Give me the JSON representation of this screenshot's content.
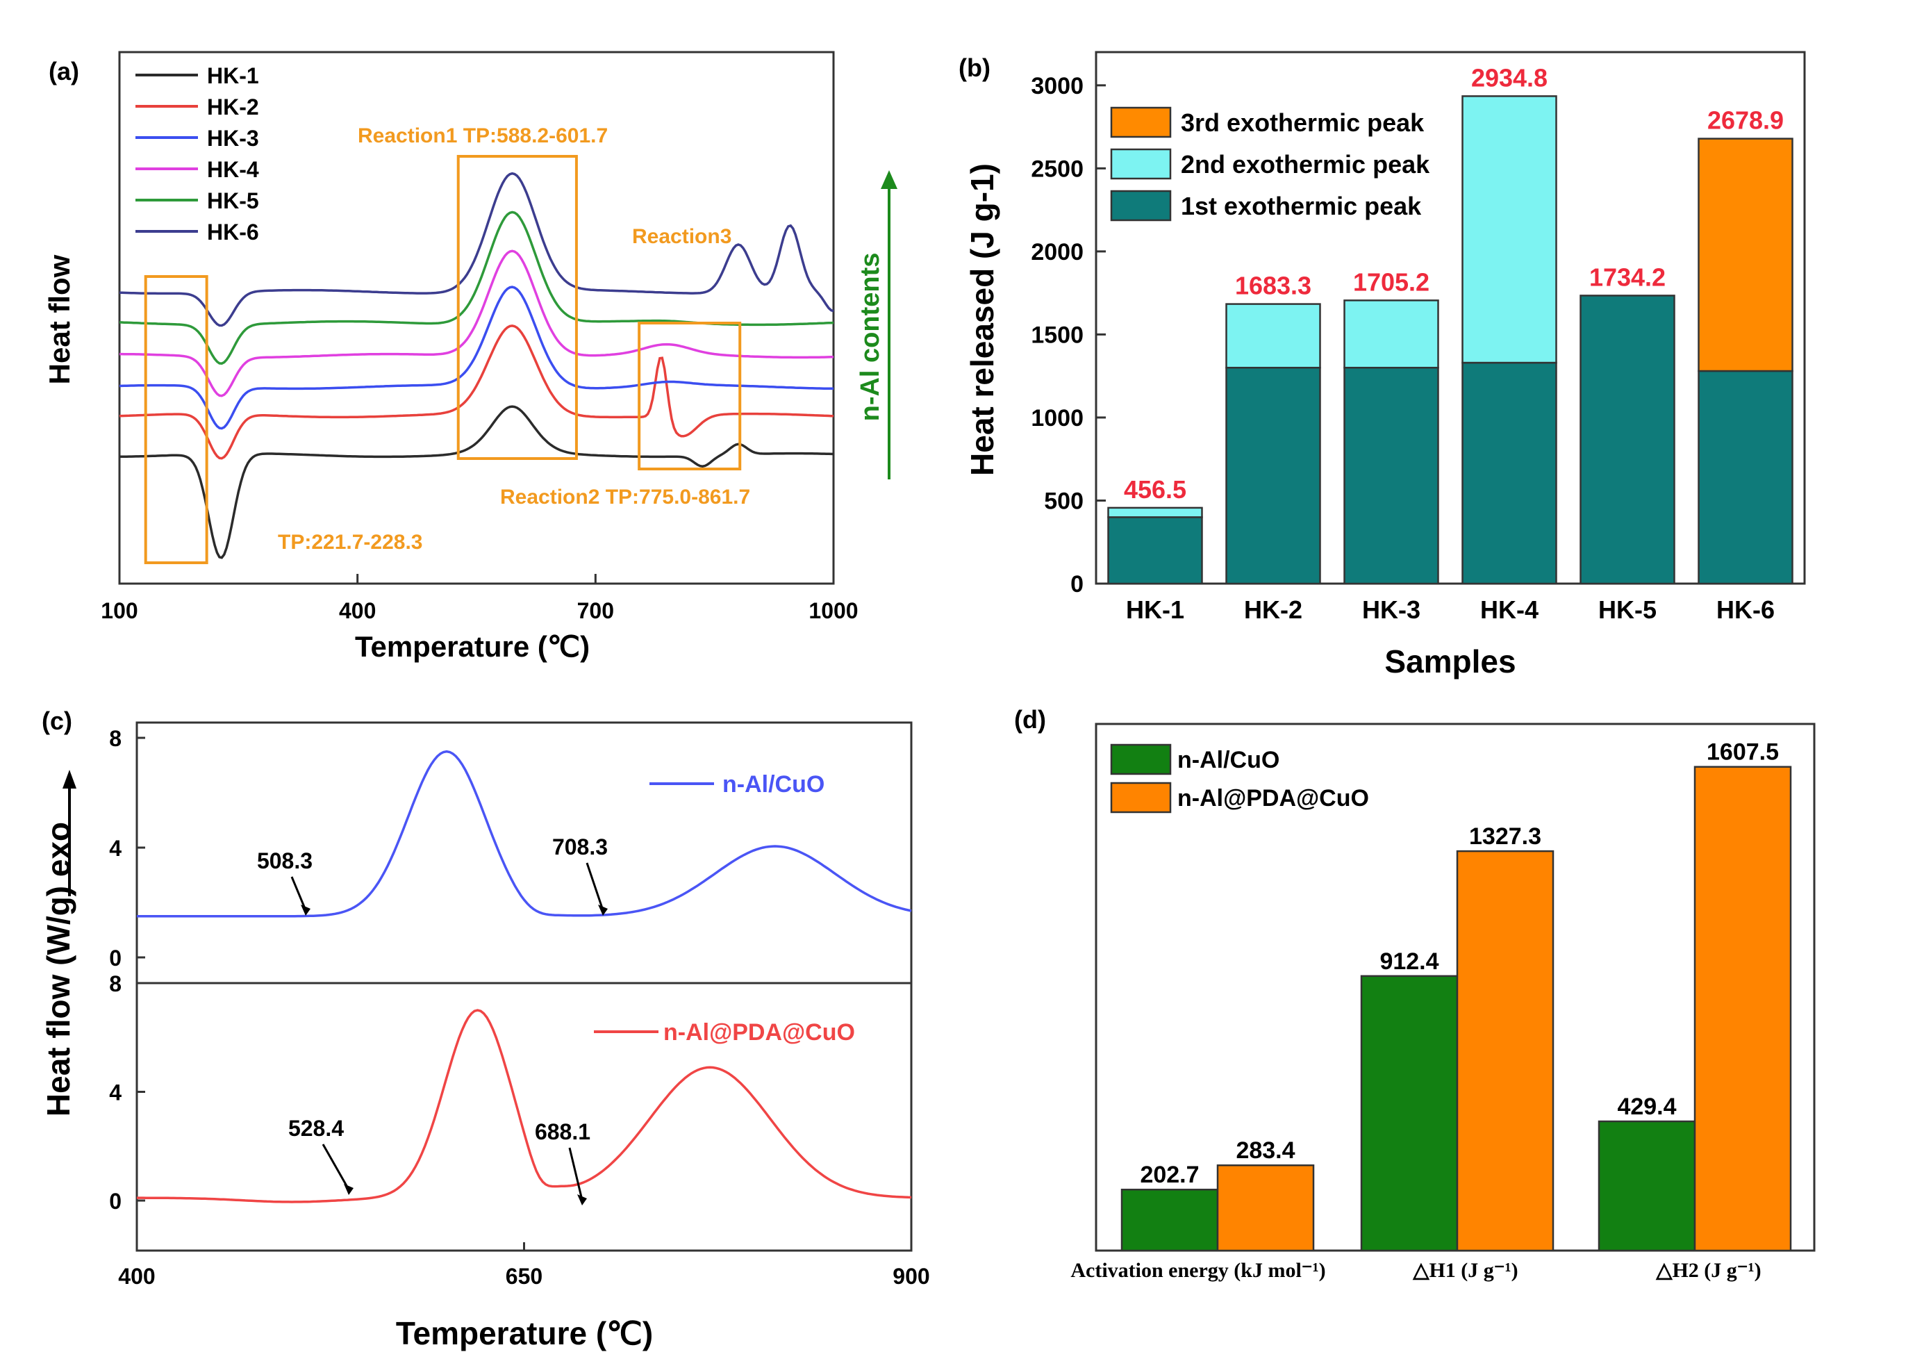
{
  "chart_data": [
    {
      "panel": "(a)",
      "type": "line",
      "xlabel": "Temperature (℃)",
      "ylabel": "Heat flow",
      "xlim": [
        100,
        1000
      ],
      "xticks": [
        100,
        400,
        700,
        1000
      ],
      "legend": [
        "HK-1",
        "HK-2",
        "HK-3",
        "HK-4",
        "HK-5",
        "HK-6"
      ],
      "legend_placement": "top-left",
      "side_label": "n-Al contents",
      "series": [
        {
          "name": "HK-1",
          "color": "#2b2b2b",
          "offset": 0,
          "peak_scale": 0.25,
          "dip_scale": 1.0,
          "r2_scale": 0.25,
          "r3_scale": 0
        },
        {
          "name": "HK-2",
          "color": "#e8413c",
          "offset": 1,
          "peak_scale": 0.75,
          "dip_scale": 0.8,
          "r2_scale": 1.0,
          "r3_scale": 0
        },
        {
          "name": "HK-3",
          "color": "#3b4ef0",
          "offset": 2,
          "peak_scale": 0.85,
          "dip_scale": 0.75,
          "r2_scale": 0.15,
          "r3_scale": 0
        },
        {
          "name": "HK-4",
          "color": "#e040e0",
          "offset": 3,
          "peak_scale": 0.9,
          "dip_scale": 0.7,
          "r2_scale": 0.35,
          "r3_scale": 0
        },
        {
          "name": "HK-5",
          "color": "#2e9a3a",
          "offset": 4,
          "peak_scale": 0.95,
          "dip_scale": 0.7,
          "r2_scale": 0.05,
          "r3_scale": 0
        },
        {
          "name": "HK-6",
          "color": "#3c3d8f",
          "offset": 5,
          "peak_scale": 1.0,
          "dip_scale": 0.6,
          "r2_scale": 0,
          "r3_scale": 1.0
        }
      ],
      "annotations": {
        "dip": "TP:221.7-228.3",
        "reaction1": "Reaction1 TP:588.2-601.7",
        "reaction2": "Reaction2 TP:775.0-861.7",
        "reaction3": "Reaction3"
      }
    },
    {
      "panel": "(b)",
      "type": "bar",
      "stacked": true,
      "xlabel": "Samples",
      "ylabel": "Heat released (J g-1)",
      "ylim": [
        0,
        3200
      ],
      "yticks": [
        0,
        500,
        1000,
        1500,
        2000,
        2500,
        3000
      ],
      "categories": [
        "HK-1",
        "HK-2",
        "HK-3",
        "HK-4",
        "HK-5",
        "HK-6"
      ],
      "series": [
        {
          "name": "1st exothermic peak",
          "color": "#0f7b7a",
          "values": [
            400,
            1300,
            1300,
            1330,
            1734.2,
            1280
          ]
        },
        {
          "name": "2nd exothermic peak",
          "color": "#7df3f2",
          "values": [
            56.5,
            383.3,
            405.2,
            1604.8,
            0,
            0
          ]
        },
        {
          "name": "3rd exothermic peak",
          "color": "#ff8a00",
          "values": [
            0,
            0,
            0,
            0,
            0,
            1398.9
          ]
        }
      ],
      "totals": [
        "456.5",
        "1683.3",
        "1705.2",
        "2934.8",
        "1734.2",
        "2678.9"
      ],
      "legend_placement": "top-left"
    },
    {
      "panel": "(c)",
      "type": "line",
      "xlabel": "Temperature (℃)",
      "ylabel": "Heat flow (W/g) exo",
      "xlim": [
        400,
        900
      ],
      "xticks": [
        400,
        650,
        900
      ],
      "yticks": [
        0,
        4,
        8
      ],
      "series": [
        {
          "name": "n-Al/CuO",
          "color": "#4a55f5",
          "onset": "508.3",
          "onset2": "708.3"
        },
        {
          "name": "n-Al@PDA@CuO",
          "color": "#f04545",
          "onset": "528.4",
          "onset2": "688.1"
        }
      ]
    },
    {
      "panel": "(d)",
      "type": "bar",
      "categories": [
        "Activation energy (kJ mol⁻¹)",
        "△H1 (J g⁻¹)",
        "△H2 (J g⁻¹)"
      ],
      "ylim": [
        0,
        1750
      ],
      "series": [
        {
          "name": "n-Al/CuO",
          "color": "#128012",
          "values": [
            202.7,
            912.4,
            429.4
          ]
        },
        {
          "name": "n-Al@PDA@CuO",
          "color": "#ff8400",
          "values": [
            283.4,
            1327.3,
            1607.5
          ]
        }
      ],
      "legend_placement": "top-left"
    }
  ]
}
